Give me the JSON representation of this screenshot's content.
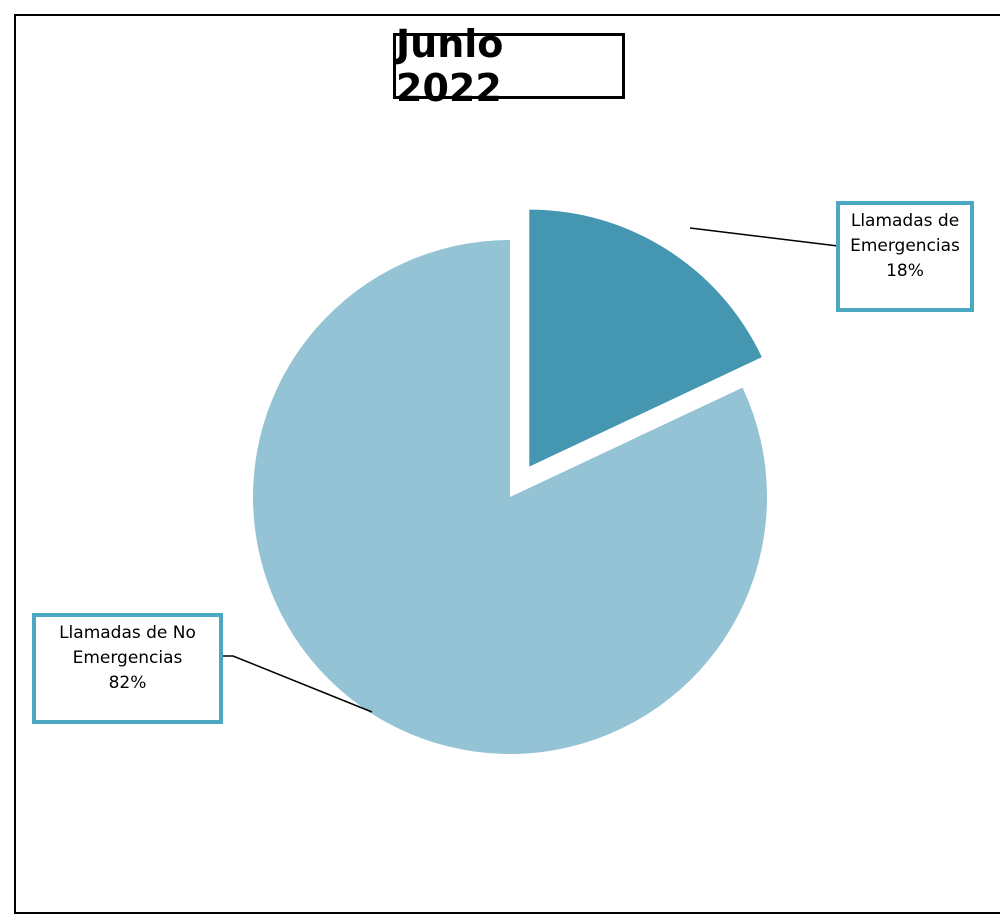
{
  "chart_data": {
    "type": "pie",
    "title": "Junio 2022",
    "slices": [
      {
        "label_line1": "Llamadas de",
        "label_line2": "Emergencias",
        "value": 18,
        "value_label": "18%",
        "color": "#4596b0",
        "exploded": true
      },
      {
        "label_line1": "Llamadas de No",
        "label_line2": "Emergencias",
        "value": 82,
        "value_label": "82%",
        "color": "#95c3d6",
        "exploded": false
      }
    ],
    "callout_border_color": "#4aa8c2"
  }
}
